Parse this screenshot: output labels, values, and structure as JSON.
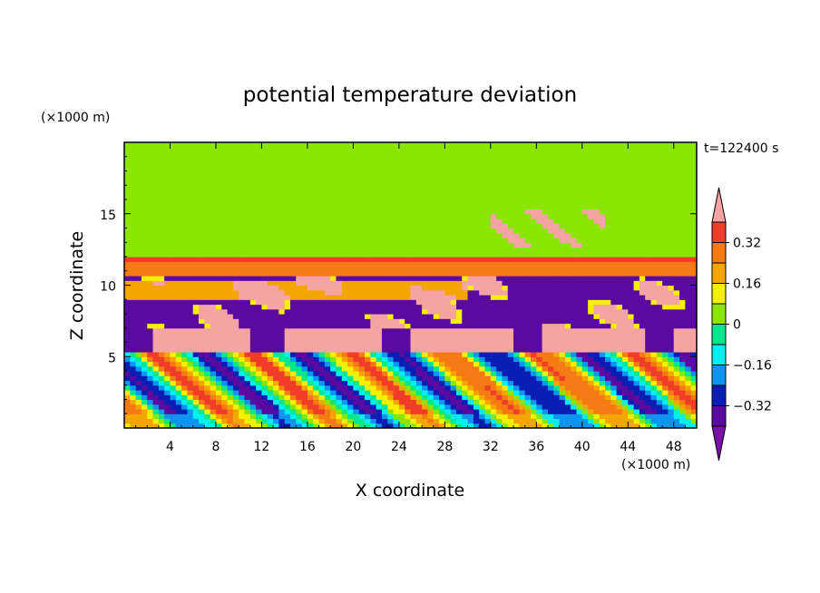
{
  "chart_data": {
    "type": "heatmap",
    "title": "potential temperature deviation",
    "xlabel": "X coordinate",
    "ylabel": "Z coordinate",
    "x_units": "(×1000 m)",
    "y_units": "(×1000 m)",
    "time_label": "t=122400 s",
    "xlim": [
      0,
      50
    ],
    "ylim": [
      0,
      20
    ],
    "x_ticks": [
      "4",
      "8",
      "12",
      "16",
      "20",
      "24",
      "28",
      "32",
      "36",
      "40",
      "44",
      "48"
    ],
    "y_ticks": [
      "5",
      "10",
      "15"
    ],
    "colorbar": {
      "levels": [
        -0.4,
        -0.32,
        -0.24,
        -0.16,
        -0.08,
        0,
        0.08,
        0.16,
        0.24,
        0.32,
        0.4
      ],
      "tick_labels": [
        "0.32",
        "0.16",
        "0",
        "−0.16",
        "−0.32"
      ],
      "colors": [
        "#f5a3a3",
        "#f03c28",
        "#f57a14",
        "#f5a500",
        "#f5f000",
        "#8ae600",
        "#00e88c",
        "#00f0f0",
        "#0a96f0",
        "#0a1eb4",
        "#5a0aa0",
        "#7a12a8"
      ],
      "extend": "both"
    },
    "layers": [
      {
        "z_range": [
          18,
          20
        ],
        "dominant_value": 0.05
      },
      {
        "z_range": [
          12,
          17
        ],
        "dominant_value": 0.02
      },
      {
        "z_range": [
          10.8,
          11.8
        ],
        "dominant_value": 0.3
      },
      {
        "z_range": [
          6.5,
          10.8
        ],
        "dominant_value": -0.38
      },
      {
        "z_range": [
          5,
          7
        ],
        "dominant_value": 0.42
      },
      {
        "z_range": [
          0,
          5
        ],
        "dominant_value": "alternating -0.36 to 0.32 (tilted wave pattern)"
      }
    ]
  }
}
